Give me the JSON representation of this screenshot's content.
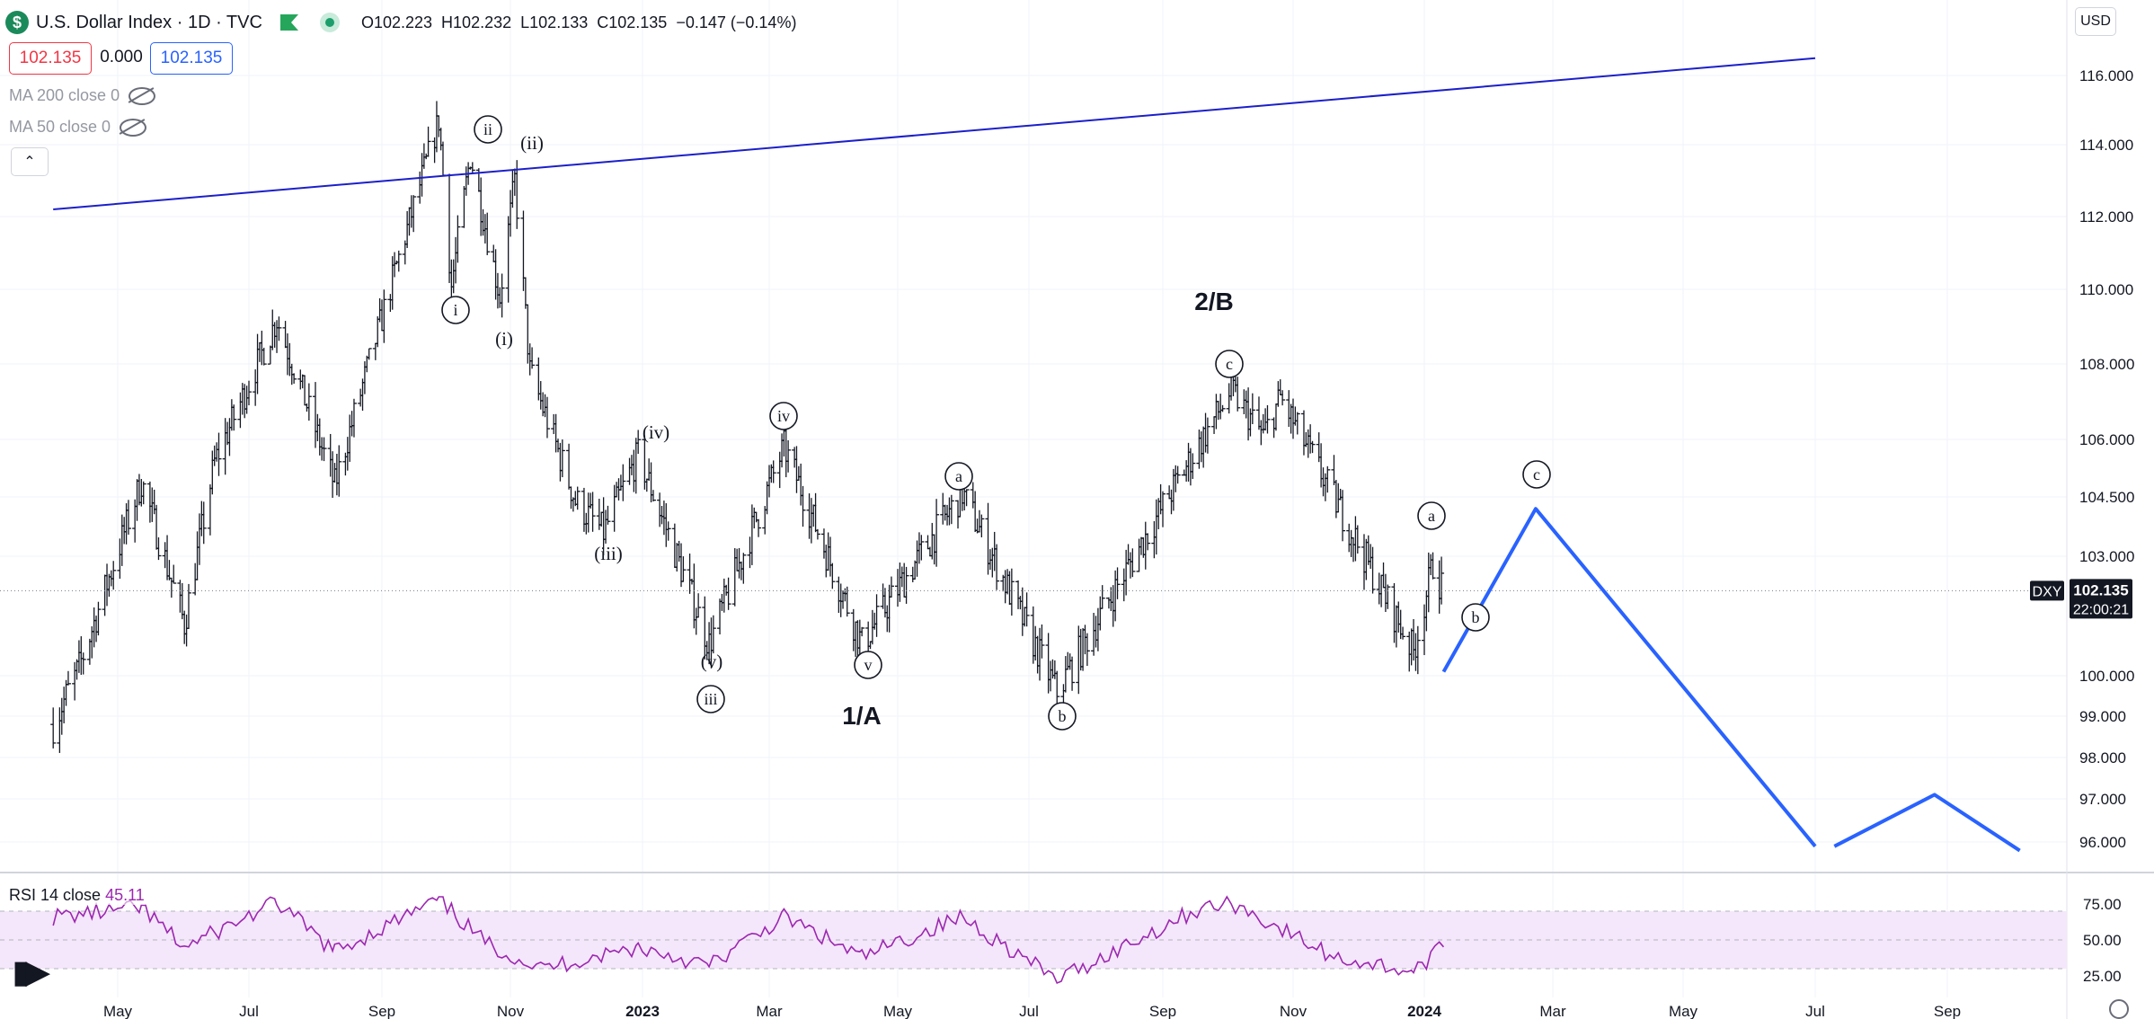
{
  "header": {
    "title": "U.S. Dollar Index · 1D · TVC",
    "logo_letter": "$",
    "ohlc": {
      "o_label": "O",
      "o": "102.223",
      "h_label": "H",
      "h": "102.232",
      "l_label": "L",
      "l": "102.133",
      "c_label": "C",
      "c": "102.135",
      "change": "−0.147 (−0.14%)"
    }
  },
  "price_pills": {
    "bid": "102.135",
    "spread": "0.000",
    "ask": "102.135"
  },
  "indicators": {
    "ma200": "MA 200 close 0",
    "ma50": "MA 50 close 0",
    "rsi_label": "RSI 14 close",
    "rsi_value": "45.11"
  },
  "currency": "USD",
  "price_axis": {
    "labels": [
      "116.000",
      "114.000",
      "112.000",
      "110.000",
      "108.000",
      "106.000",
      "104.500",
      "103.000",
      "100.000",
      "99.000",
      "98.000",
      "97.000",
      "96.000"
    ],
    "current_symbol": "DXY",
    "current_price": "102.135",
    "countdown": "22:00:21"
  },
  "rsi_axis": {
    "labels": [
      "75.00",
      "50.00",
      "25.00"
    ]
  },
  "time_axis": {
    "labels": [
      "May",
      "Jul",
      "Sep",
      "Nov",
      "2023",
      "Mar",
      "May",
      "Jul",
      "Sep",
      "Nov",
      "2024",
      "Mar",
      "May",
      "Jul",
      "Sep"
    ],
    "bold": [
      "2023",
      "2024"
    ]
  },
  "wave_labels": {
    "circled": [
      "ii",
      "i",
      "iii",
      "iv",
      "v",
      "a",
      "b",
      "c",
      "a",
      "b",
      "c"
    ],
    "plain": [
      "(ii)",
      "(i)",
      "(iv)",
      "(iii)",
      "(v)"
    ],
    "big": [
      "1/A",
      "2/B"
    ]
  },
  "chart_data": {
    "type": "ohlc",
    "symbol": "DXY",
    "timeframe": "1D",
    "x_start": "2022-04",
    "x_end": "2024-09",
    "ylim": [
      95.7,
      117.0
    ],
    "log_scale": false,
    "last_price": 102.135,
    "swing_points": [
      {
        "date": "2022-04-01",
        "price": 98.8
      },
      {
        "date": "2022-04-13",
        "price": 100.2
      },
      {
        "date": "2022-05-12",
        "price": 104.9
      },
      {
        "date": "2022-06-01",
        "price": 101.3
      },
      {
        "date": "2022-06-15",
        "price": 105.4
      },
      {
        "date": "2022-07-14",
        "price": 109.2
      },
      {
        "date": "2022-08-10",
        "price": 104.8
      },
      {
        "date": "2022-09-28",
        "price": 114.7
      },
      {
        "date": "2022-10-04",
        "price": 110.1
      },
      {
        "date": "2022-10-13",
        "price": 113.7
      },
      {
        "date": "2022-10-27",
        "price": 109.8
      },
      {
        "date": "2022-11-03",
        "price": 113.0
      },
      {
        "date": "2022-11-10",
        "price": 107.8
      },
      {
        "date": "2022-12-01",
        "price": 104.4
      },
      {
        "date": "2022-12-14",
        "price": 103.6
      },
      {
        "date": "2022-12-30",
        "price": 105.6
      },
      {
        "date": "2023-02-01",
        "price": 100.8
      },
      {
        "date": "2023-03-08",
        "price": 105.8
      },
      {
        "date": "2023-04-14",
        "price": 100.8
      },
      {
        "date": "2023-05-31",
        "price": 104.6
      },
      {
        "date": "2023-07-14",
        "price": 99.6
      },
      {
        "date": "2023-10-03",
        "price": 107.3
      },
      {
        "date": "2023-10-18",
        "price": 106.1
      },
      {
        "date": "2023-10-26",
        "price": 107.1
      },
      {
        "date": "2023-12-27",
        "price": 100.6
      },
      {
        "date": "2024-01-05",
        "price": 102.8
      },
      {
        "date": "2024-01-10",
        "price": 102.1
      }
    ],
    "trendline": {
      "from": {
        "date": "2022-04-01",
        "price": 112.2
      },
      "to": {
        "date": "2024-07-01",
        "price": 116.5
      }
    },
    "projection": [
      {
        "date": "2024-01-10",
        "price": 100.1
      },
      {
        "date": "2024-02-22",
        "price": 104.2
      },
      {
        "date": "2024-07-01",
        "price": 95.9
      }
    ],
    "projection_2": [
      {
        "date": "2024-07-10",
        "price": 95.9
      },
      {
        "date": "2024-08-26",
        "price": 97.1
      },
      {
        "date": "2024-10-05",
        "price": 95.8
      }
    ],
    "rsi": {
      "period": 14,
      "last": 45.11,
      "ylim": [
        20,
        80
      ],
      "bands": [
        30,
        70
      ],
      "points": [
        {
          "date": "2022-04-01",
          "value": 66
        },
        {
          "date": "2022-05-12",
          "value": 72
        },
        {
          "date": "2022-06-01",
          "value": 45
        },
        {
          "date": "2022-07-14",
          "value": 76
        },
        {
          "date": "2022-08-10",
          "value": 42
        },
        {
          "date": "2022-09-28",
          "value": 78
        },
        {
          "date": "2022-10-20",
          "value": 48
        },
        {
          "date": "2022-11-15",
          "value": 30
        },
        {
          "date": "2022-12-30",
          "value": 45
        },
        {
          "date": "2023-02-01",
          "value": 32
        },
        {
          "date": "2023-03-08",
          "value": 66
        },
        {
          "date": "2023-04-14",
          "value": 38
        },
        {
          "date": "2023-05-31",
          "value": 66
        },
        {
          "date": "2023-07-14",
          "value": 22
        },
        {
          "date": "2023-09-15",
          "value": 70
        },
        {
          "date": "2023-10-03",
          "value": 76
        },
        {
          "date": "2023-11-20",
          "value": 38
        },
        {
          "date": "2023-12-27",
          "value": 28
        },
        {
          "date": "2024-01-10",
          "value": 45
        }
      ]
    }
  }
}
